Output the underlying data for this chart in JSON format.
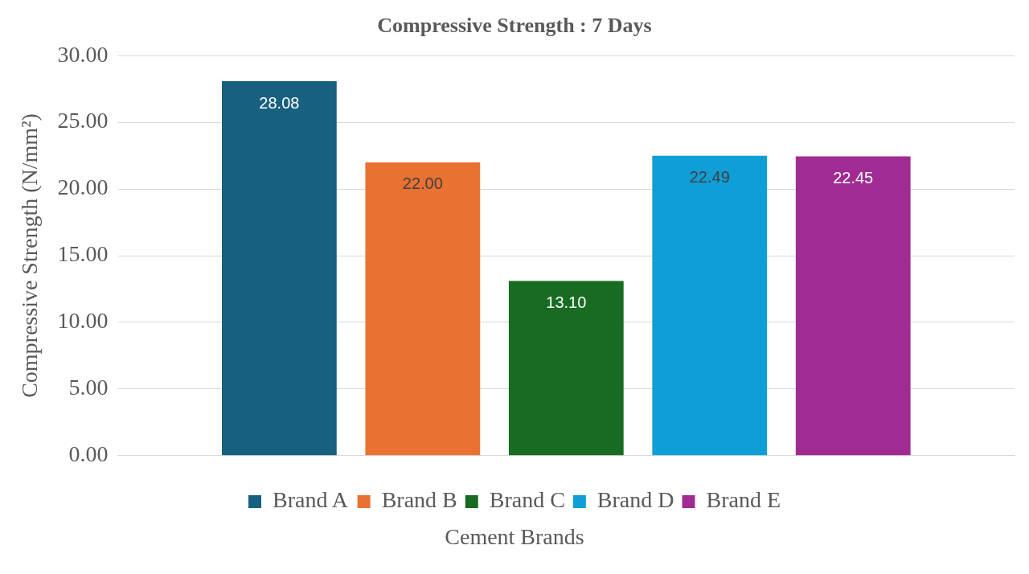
{
  "chart_data": {
    "type": "bar",
    "title": "Compressive Strength : 7 Days",
    "xlabel": "Cement Brands",
    "ylabel": "Compressive Strength (N/mm²)",
    "categories": [
      null
    ],
    "series": [
      {
        "name": "Brand A",
        "color": "#17607f",
        "values": [
          28.08
        ],
        "value_labels": [
          "28.08"
        ]
      },
      {
        "name": "Brand B",
        "color": "#e97132",
        "values": [
          22.0
        ],
        "value_labels": [
          "22.00"
        ]
      },
      {
        "name": "Brand C",
        "color": "#196b24",
        "values": [
          13.1
        ],
        "value_labels": [
          "13.10"
        ]
      },
      {
        "name": "Brand D",
        "color": "#0f9ed5",
        "values": [
          22.49
        ],
        "value_labels": [
          "22.49"
        ]
      },
      {
        "name": "Brand E",
        "color": "#a02b93",
        "values": [
          22.45
        ],
        "value_labels": [
          "22.45"
        ]
      }
    ],
    "ylim": [
      0,
      30
    ],
    "yticks": [
      {
        "value": 0,
        "label": "0.00"
      },
      {
        "value": 5,
        "label": "5.00"
      },
      {
        "value": 10,
        "label": "10.00"
      },
      {
        "value": 15,
        "label": "15.00"
      },
      {
        "value": 20,
        "label": "20.00"
      },
      {
        "value": 25,
        "label": "25.00"
      },
      {
        "value": 30,
        "label": "30.00"
      }
    ],
    "grid": "y",
    "legend": "bottom"
  }
}
